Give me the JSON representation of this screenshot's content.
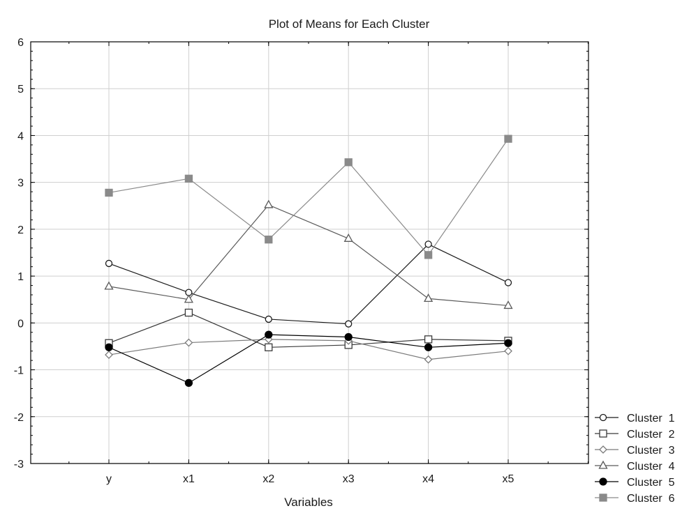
{
  "chart_data": {
    "type": "line",
    "title": "Plot of Means for Each Cluster",
    "xlabel": "Variables",
    "ylabel": "",
    "categories": [
      "y",
      "x1",
      "x2",
      "x3",
      "x4",
      "x5"
    ],
    "ylim": [
      -3,
      6
    ],
    "yticks": [
      -3,
      -2,
      -1,
      0,
      1,
      2,
      3,
      4,
      5,
      6
    ],
    "ytick_labels": [
      "-3",
      "-2",
      "-1",
      "0",
      "1",
      "2",
      "3",
      "4",
      "5",
      "6"
    ],
    "grid": true,
    "legend_position": "bottom-right outside",
    "series": [
      {
        "name": "Cluster  1",
        "marker": "circle-open",
        "color": "#1a1a1a",
        "values": [
          1.27,
          0.65,
          0.08,
          -0.02,
          1.68,
          0.86
        ]
      },
      {
        "name": "Cluster  2",
        "marker": "square-open",
        "color": "#3a3a3a",
        "values": [
          -0.43,
          0.22,
          -0.52,
          -0.47,
          -0.35,
          -0.38
        ]
      },
      {
        "name": "Cluster  3",
        "marker": "diamond-open",
        "color": "#7a7a7a",
        "values": [
          -0.68,
          -0.42,
          -0.35,
          -0.38,
          -0.78,
          -0.6
        ]
      },
      {
        "name": "Cluster  4",
        "marker": "triangle-open",
        "color": "#5a5a5a",
        "values": [
          0.78,
          0.5,
          2.52,
          1.8,
          0.52,
          0.37
        ]
      },
      {
        "name": "Cluster  5",
        "marker": "circle-filled",
        "color": "#000000",
        "values": [
          -0.52,
          -1.28,
          -0.25,
          -0.3,
          -0.52,
          -0.43
        ]
      },
      {
        "name": "Cluster  6",
        "marker": "square-filled",
        "color": "#8a8a8a",
        "values": [
          2.78,
          3.08,
          1.78,
          3.43,
          1.45,
          3.93
        ]
      }
    ]
  }
}
